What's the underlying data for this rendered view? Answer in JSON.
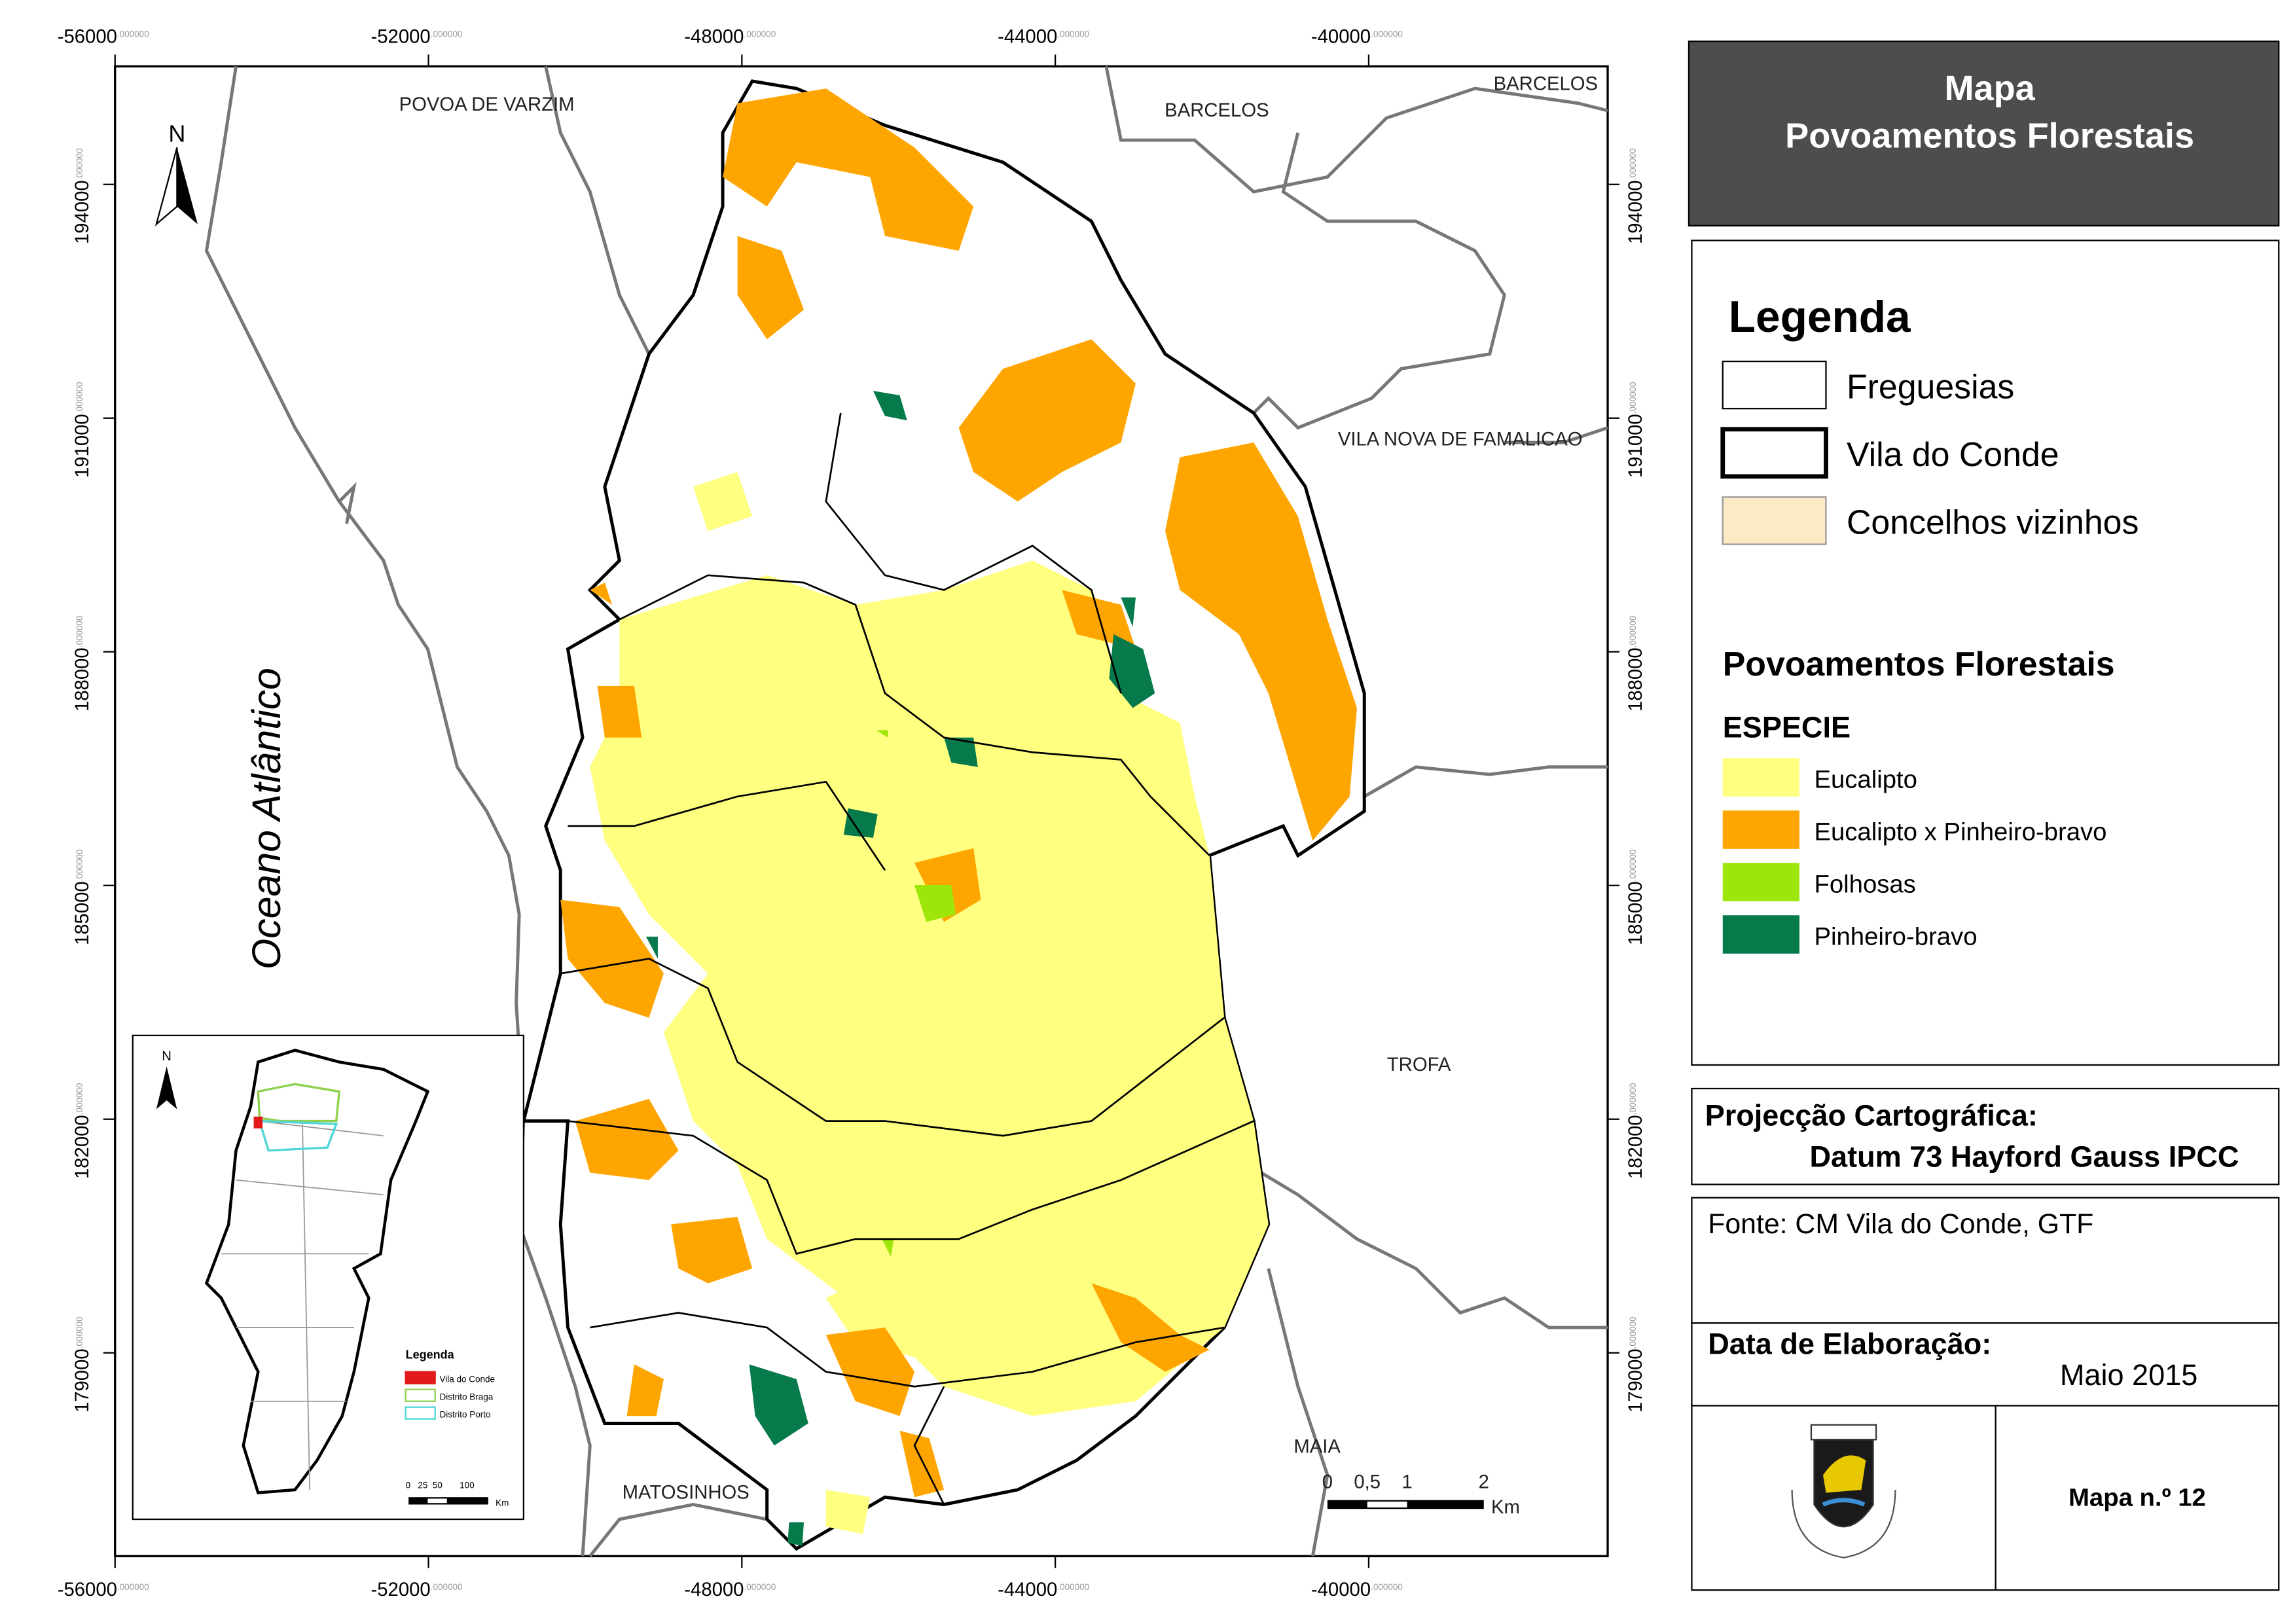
{
  "map": {
    "xlim": [
      -56000,
      -36950
    ],
    "ylim": [
      176390,
      195515
    ],
    "xticks": [
      -56000,
      -52000,
      -48000,
      -44000,
      -40000
    ],
    "yticks": [
      179000,
      182000,
      185000,
      188000,
      191000,
      194000
    ],
    "tick_decimals": ".000000",
    "places": [
      "POVOA DE VARZIM",
      "BARCELOS",
      "BARCELOS",
      "VILA NOVA DE FAMALICAO",
      "TROFA",
      "MAIA",
      "MATOSINHOS"
    ],
    "ocean": "Oceano Atlântico",
    "north": "N",
    "scale_bar": {
      "labels": [
        "0",
        "0,5",
        "1",
        "2"
      ],
      "unit": "Km"
    }
  },
  "inset": {
    "north": "N",
    "legend_title": "Legenda",
    "items": [
      {
        "name": "Vila do Conde",
        "color": "#e31a1c"
      },
      {
        "name": "Distrito Braga",
        "color": "#8fd14f"
      },
      {
        "name": "Distrito Porto",
        "color": "#4fd6d6"
      }
    ],
    "scale_labels": "0   25  50       100",
    "scale_unit": "Km"
  },
  "panel": {
    "title": [
      "Mapa",
      "Povoamentos Florestais"
    ],
    "legend_title": "Legenda",
    "boundaries": [
      {
        "name": "Freguesias"
      },
      {
        "name": "Vila do Conde"
      },
      {
        "name": "Concelhos vizinhos",
        "color": "#fde9c4"
      }
    ],
    "subtitle": "Povoamentos Florestais",
    "field": "ESPECIE",
    "species": [
      {
        "name": "Eucalipto",
        "color": "#ffff80"
      },
      {
        "name": "Eucalipto x Pinheiro-bravo",
        "color": "#ffa500"
      },
      {
        "name": "Folhosas",
        "color": "#9ee60a"
      },
      {
        "name": "Pinheiro-bravo",
        "color": "#067a4b"
      }
    ],
    "projection_title": "Projecção Cartográfica:",
    "projection": "Datum 73 Hayford Gauss IPCC",
    "source": "Fonte: CM Vila do Conde, GTF",
    "date_title": "Data de Elaboração:",
    "date": "Maio 2015",
    "map_number": "Mapa n.º 12"
  }
}
